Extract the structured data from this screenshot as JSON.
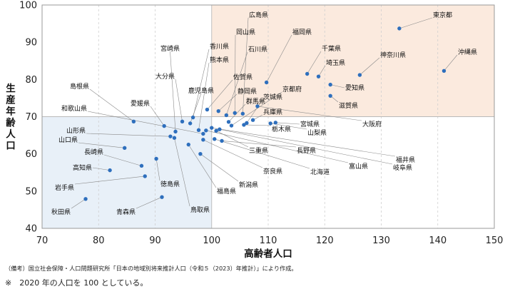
{
  "chart_data": {
    "type": "scatter",
    "xlabel": "高齢者人口",
    "ylabel": "生産年齢人口",
    "xlim": [
      70,
      150
    ],
    "ylim": [
      40,
      100
    ],
    "x_ticks": [
      70,
      80,
      90,
      100,
      110,
      120,
      130,
      140,
      150
    ],
    "y_ticks": [
      40,
      50,
      60,
      70,
      80,
      90,
      100
    ],
    "grid": "dashed vertical lines",
    "reference_lines": {
      "x": 100,
      "y": 70
    },
    "regions": [
      {
        "name": "upper-right",
        "x": [
          100,
          150
        ],
        "y": [
          70,
          100
        ],
        "color": "#fbeade"
      },
      {
        "name": "lower-left",
        "x": [
          70,
          100
        ],
        "y": [
          40,
          70
        ],
        "color": "#e8f0f8"
      }
    ],
    "marker_color": "#2e6fbd",
    "points": [
      {
        "name": "東京都",
        "x": 133.2,
        "y": 93.7
      },
      {
        "name": "沖縄県",
        "x": 141.1,
        "y": 82.3
      },
      {
        "name": "神奈川県",
        "x": 126.2,
        "y": 81.2
      },
      {
        "name": "福岡県",
        "x": 109.7,
        "y": 79.2
      },
      {
        "name": "千葉県",
        "x": 116.9,
        "y": 81.5
      },
      {
        "name": "埼玉県",
        "x": 118.9,
        "y": 80.8
      },
      {
        "name": "愛知県",
        "x": 121.0,
        "y": 78.6
      },
      {
        "name": "滋賀県",
        "x": 121.0,
        "y": 75.6
      },
      {
        "name": "大阪府",
        "x": 108.1,
        "y": 72.8
      },
      {
        "name": "広島県",
        "x": 105.5,
        "y": 70.8
      },
      {
        "name": "岡山県",
        "x": 104.1,
        "y": 71.0
      },
      {
        "name": "石川県",
        "x": 102.6,
        "y": 70.4
      },
      {
        "name": "香川県",
        "x": 96.7,
        "y": 69.8
      },
      {
        "name": "熊本県",
        "x": 97.7,
        "y": 66.4
      },
      {
        "name": "佐賀県",
        "x": 99.2,
        "y": 71.9
      },
      {
        "name": "宮崎県",
        "x": 93.6,
        "y": 66.0
      },
      {
        "name": "大分県",
        "x": 94.8,
        "y": 68.7
      },
      {
        "name": "鹿児島県",
        "x": 96.2,
        "y": 68.2
      },
      {
        "name": "静岡県",
        "x": 101.2,
        "y": 71.5
      },
      {
        "name": "京都府",
        "x": 103.5,
        "y": 67.6
      },
      {
        "name": "茨城県",
        "x": 106.2,
        "y": 68.3
      },
      {
        "name": "群馬県",
        "x": 103.0,
        "y": 68.6
      },
      {
        "name": "兵庫県",
        "x": 107.3,
        "y": 69.1
      },
      {
        "name": "宮城県",
        "x": 111.3,
        "y": 68.4
      },
      {
        "name": "栃木県",
        "x": 105.7,
        "y": 67.8
      },
      {
        "name": "山梨県",
        "x": 110.4,
        "y": 68.2
      },
      {
        "name": "島根県",
        "x": 86.2,
        "y": 68.7
      },
      {
        "name": "愛媛県",
        "x": 91.6,
        "y": 67.5
      },
      {
        "name": "和歌山県",
        "x": 98.5,
        "y": 65.4
      },
      {
        "name": "山形県",
        "x": 92.7,
        "y": 64.7
      },
      {
        "name": "山口県",
        "x": 84.6,
        "y": 61.6
      },
      {
        "name": "長崎県",
        "x": 87.6,
        "y": 56.8
      },
      {
        "name": "高知県",
        "x": 82.0,
        "y": 55.6
      },
      {
        "name": "岩手県",
        "x": 88.2,
        "y": 54.0
      },
      {
        "name": "秋田県",
        "x": 77.7,
        "y": 47.9
      },
      {
        "name": "青森県",
        "x": 91.2,
        "y": 48.4
      },
      {
        "name": "徳島県",
        "x": 90.2,
        "y": 58.7
      },
      {
        "name": "鳥取県",
        "x": 93.4,
        "y": 64.3
      },
      {
        "name": "福島県",
        "x": 95.9,
        "y": 62.5
      },
      {
        "name": "新潟県",
        "x": 98.0,
        "y": 60.0
      },
      {
        "name": "北海道",
        "x": 100.5,
        "y": 64.0
      },
      {
        "name": "奈良県",
        "x": 98.5,
        "y": 63.8
      },
      {
        "name": "三重県",
        "x": 100.8,
        "y": 66.2
      },
      {
        "name": "長野県",
        "x": 101.8,
        "y": 63.5
      },
      {
        "name": "富山県",
        "x": 99.0,
        "y": 66.3
      },
      {
        "name": "岐阜県",
        "x": 101.4,
        "y": 66.6
      },
      {
        "name": "福井県",
        "x": 100.0,
        "y": 67.0
      }
    ]
  },
  "notes": {
    "source": "（備考）国立社会保障・人口問題研究所「日本の地域別将来推計人口（令和５（2023）年推計）」により作成。",
    "footnote": "※　2020 年の人口を 100 としている。"
  }
}
